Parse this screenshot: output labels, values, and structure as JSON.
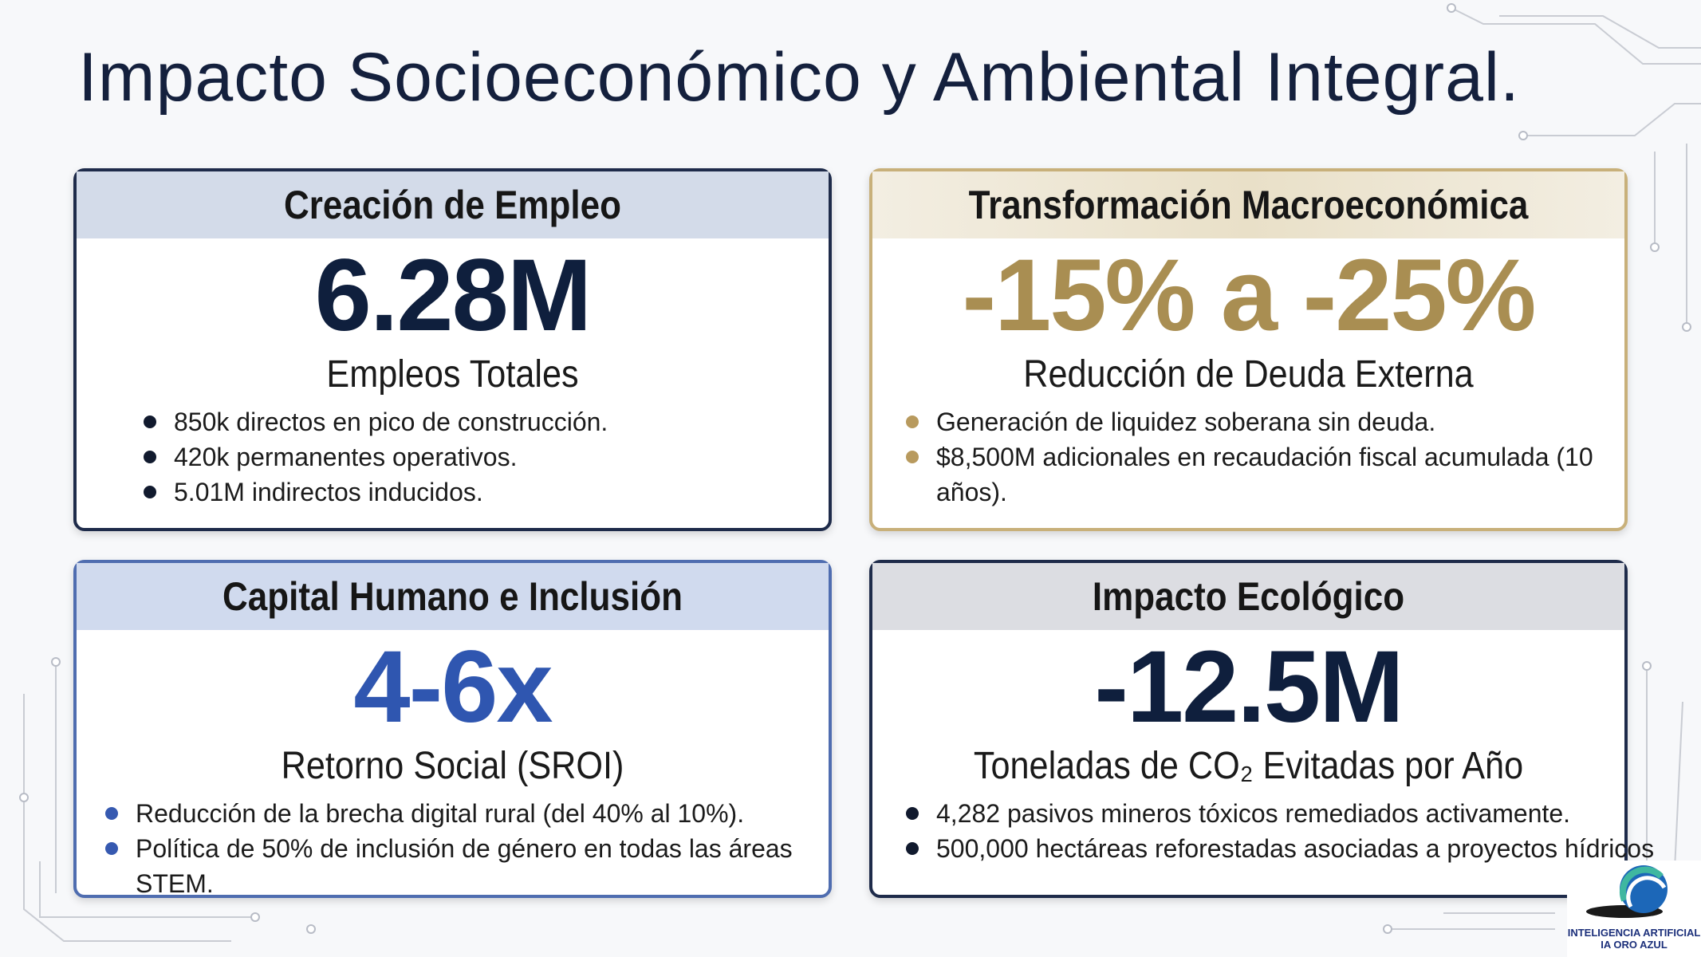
{
  "title": "Impacto Socioeconómico y Ambiental Integral.",
  "cards": [
    {
      "header": "Creación de Empleo",
      "metric": "6.28M",
      "label": "Empleos Totales",
      "bullets": [
        "850k directos en pico de construcción.",
        "420k permanentes operativos.",
        "5.01M indirectos inducidos."
      ]
    },
    {
      "header": "Transformación Macroeconómica",
      "metric": "-15% a -25%",
      "label": "Reducción de Deuda Externa",
      "bullets": [
        "Generación de liquidez soberana sin deuda.",
        "$8,500M adicionales en recaudación fiscal acumulada (10 años)."
      ]
    },
    {
      "header": "Capital Humano e Inclusión",
      "metric": "4-6x",
      "label": "Retorno Social (SROI)",
      "bullets": [
        "Reducción de la brecha digital rural (del 40% al 10%).",
        "Política de 50% de inclusión de género en todas las áreas STEM."
      ]
    },
    {
      "header": "Impacto Ecológico",
      "metric": "-12.5M",
      "label": "Toneladas de CO₂ Evitadas por Año",
      "bullets": [
        "4,282 pasivos mineros tóxicos remediados activamente.",
        "500,000 hectáreas reforestadas asociadas a proyectos hídricos"
      ]
    }
  ],
  "logo": {
    "line1": "INTELIGENCIA ARTIFICIAL",
    "line2": "IA ORO AZUL"
  }
}
